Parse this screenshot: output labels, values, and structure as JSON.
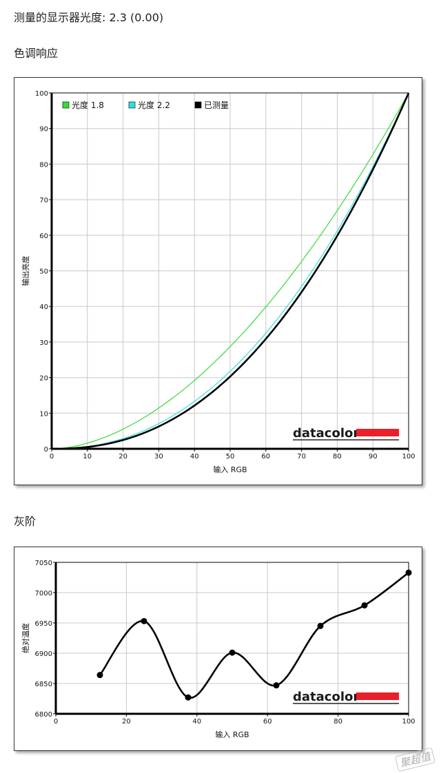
{
  "headings": {
    "gamma_measured": "测量的显示器光度: 2.3 (0.00)",
    "tone_response": "色调响应",
    "grayscale": "灰阶"
  },
  "logo_text": "datacolor",
  "watermark_text": "聚超值",
  "colors": {
    "gamma18": "#33dd33",
    "gamma22": "#33dddd",
    "measured": "#000000",
    "logo_bar": "#e8202a",
    "grid": "#c8c8c8"
  },
  "chart_data": [
    {
      "type": "line",
      "xlabel": "输入 RGB",
      "ylabel": "输出亮度",
      "xlim": [
        0,
        100
      ],
      "ylim": [
        0,
        100
      ],
      "x_ticks": [
        0,
        10,
        20,
        30,
        40,
        50,
        60,
        70,
        80,
        90,
        100
      ],
      "y_ticks": [
        0,
        10,
        20,
        30,
        40,
        50,
        60,
        70,
        80,
        90,
        100
      ],
      "grid": true,
      "legend_position": "top-left",
      "series": [
        {
          "name": "光度 1.8",
          "color": "#33dd33",
          "gamma": 1.8,
          "x": [
            0,
            10,
            20,
            30,
            40,
            50,
            60,
            70,
            80,
            90,
            100
          ],
          "y": [
            0,
            1.6,
            5.5,
            11.5,
            19.2,
            28.7,
            39.8,
            52.6,
            66.9,
            82.7,
            100
          ]
        },
        {
          "name": "光度 2.2",
          "color": "#33dddd",
          "gamma": 2.2,
          "x": [
            0,
            10,
            20,
            30,
            40,
            50,
            60,
            70,
            80,
            90,
            100
          ],
          "y": [
            0,
            0.6,
            2.9,
            7.1,
            13.3,
            21.8,
            32.5,
            45.6,
            61.2,
            79.3,
            100
          ]
        },
        {
          "name": "已测量",
          "color": "#000000",
          "gamma": 2.3,
          "x": [
            0,
            10,
            20,
            30,
            40,
            50,
            60,
            70,
            80,
            90,
            100
          ],
          "y": [
            0,
            0.5,
            2.5,
            6.3,
            12.2,
            20.3,
            30.9,
            44.0,
            59.8,
            78.5,
            100
          ]
        }
      ]
    },
    {
      "type": "line",
      "xlabel": "输入 RGB",
      "ylabel": "绝对温度",
      "xlim": [
        0,
        100
      ],
      "ylim": [
        6800,
        7050
      ],
      "x_ticks": [
        0,
        20,
        40,
        60,
        80,
        100
      ],
      "y_ticks": [
        6800,
        6850,
        6900,
        6950,
        7000,
        7050
      ],
      "grid": true,
      "series": [
        {
          "color": "#000000",
          "x": [
            12.5,
            25,
            37.5,
            50,
            62.5,
            75,
            87.5,
            100
          ],
          "y": [
            6864,
            6953,
            6827,
            6901,
            6847,
            6945,
            6979,
            7033
          ]
        }
      ]
    }
  ]
}
